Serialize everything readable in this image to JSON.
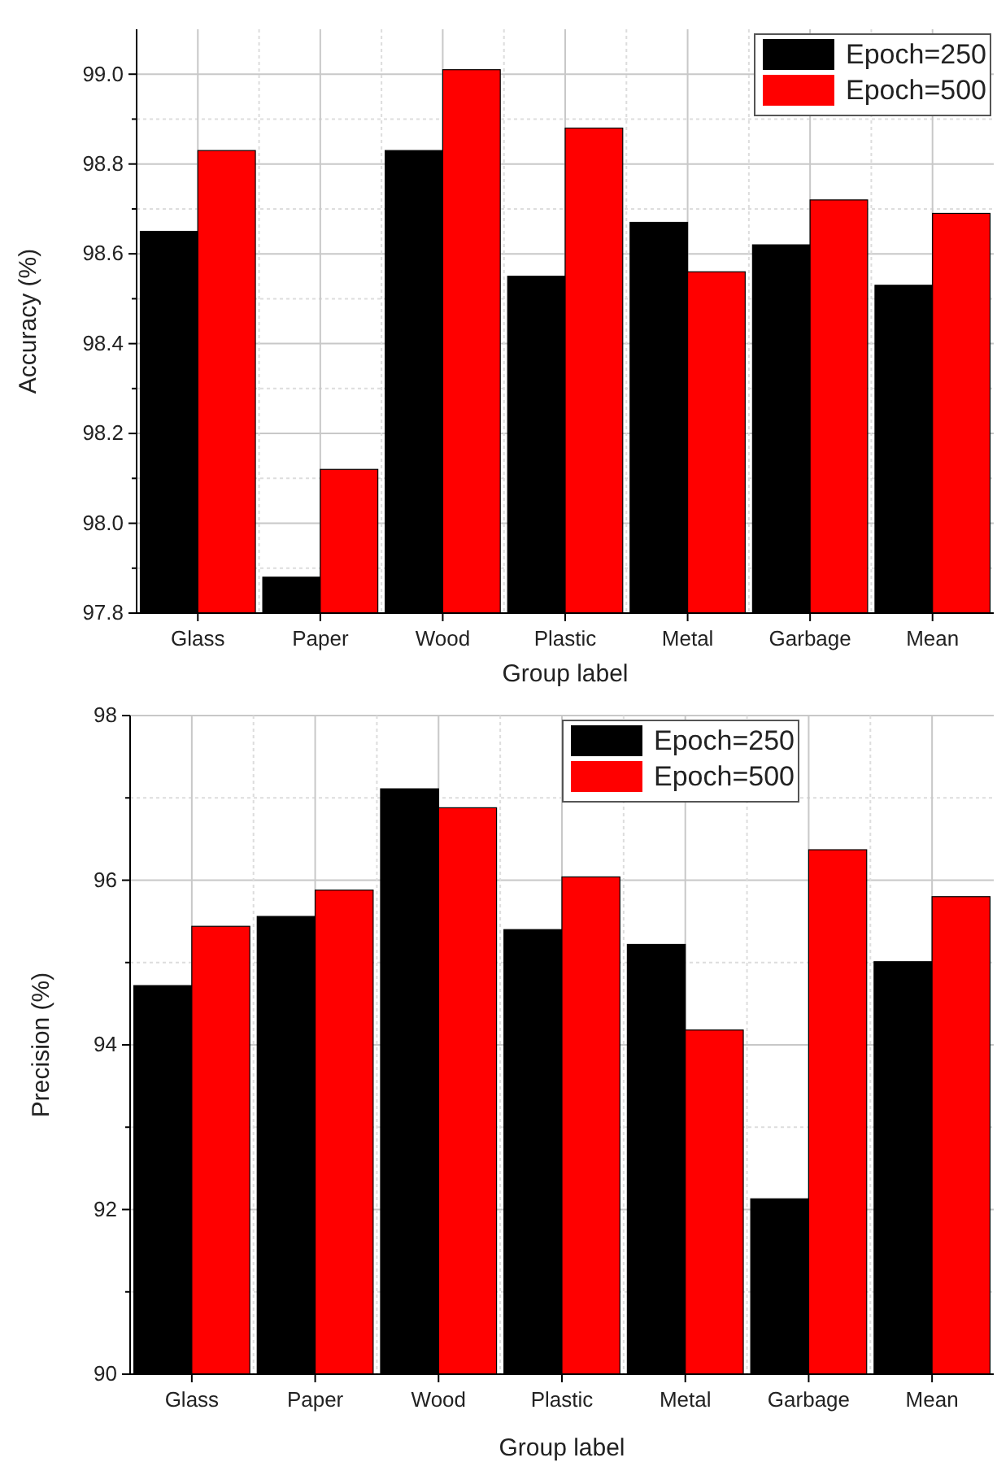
{
  "chart_data": [
    {
      "type": "bar",
      "xlabel": "Group label",
      "ylabel": "Accuracy (%)",
      "categories": [
        "Glass",
        "Paper",
        "Wood",
        "Plastic",
        "Metal",
        "Garbage",
        "Mean"
      ],
      "series": [
        {
          "name": "Epoch=250",
          "color": "#000000",
          "values": [
            98.65,
            97.88,
            98.83,
            98.55,
            98.67,
            98.62,
            98.53
          ]
        },
        {
          "name": "Epoch=500",
          "color": "#ff0000",
          "values": [
            98.83,
            98.12,
            99.01,
            98.88,
            98.56,
            98.72,
            98.69
          ]
        }
      ],
      "ylim": [
        97.8,
        99.1
      ],
      "yticks": [
        {
          "value": 97.8,
          "label": "97.8"
        },
        {
          "value": 97.9,
          "label": null
        },
        {
          "value": 98,
          "label": "98.0"
        },
        {
          "value": 98.1,
          "label": null
        },
        {
          "value": 98.2,
          "label": "98.2"
        },
        {
          "value": 98.3,
          "label": null
        },
        {
          "value": 98.4,
          "label": "98.4"
        },
        {
          "value": 98.5,
          "label": null
        },
        {
          "value": 98.6,
          "label": "98.6"
        },
        {
          "value": 98.7,
          "label": null
        },
        {
          "value": 98.8,
          "label": "98.8"
        },
        {
          "value": 98.9,
          "label": null
        },
        {
          "value": 99,
          "label": "99.0"
        }
      ],
      "grid": true,
      "legend": "top right"
    },
    {
      "type": "bar",
      "xlabel": "Group label",
      "ylabel": "Precision (%)",
      "categories": [
        "Glass",
        "Paper",
        "Wood",
        "Plastic",
        "Metal",
        "Garbage",
        "Mean"
      ],
      "series": [
        {
          "name": "Epoch=250",
          "color": "#000000",
          "values": [
            94.72,
            95.56,
            97.11,
            95.4,
            95.22,
            92.13,
            95.01
          ]
        },
        {
          "name": "Epoch=500",
          "color": "#ff0000",
          "values": [
            95.44,
            95.88,
            96.88,
            96.04,
            94.18,
            96.37,
            95.8
          ]
        }
      ],
      "ylim": [
        90,
        98
      ],
      "yticks": [
        90,
        {
          "value": 91,
          "label": null
        },
        92,
        {
          "value": 93,
          "label": null
        },
        94,
        {
          "value": 95,
          "label": null
        },
        96,
        {
          "value": 97,
          "label": null
        },
        98
      ],
      "grid": true,
      "legend": "top right"
    }
  ]
}
